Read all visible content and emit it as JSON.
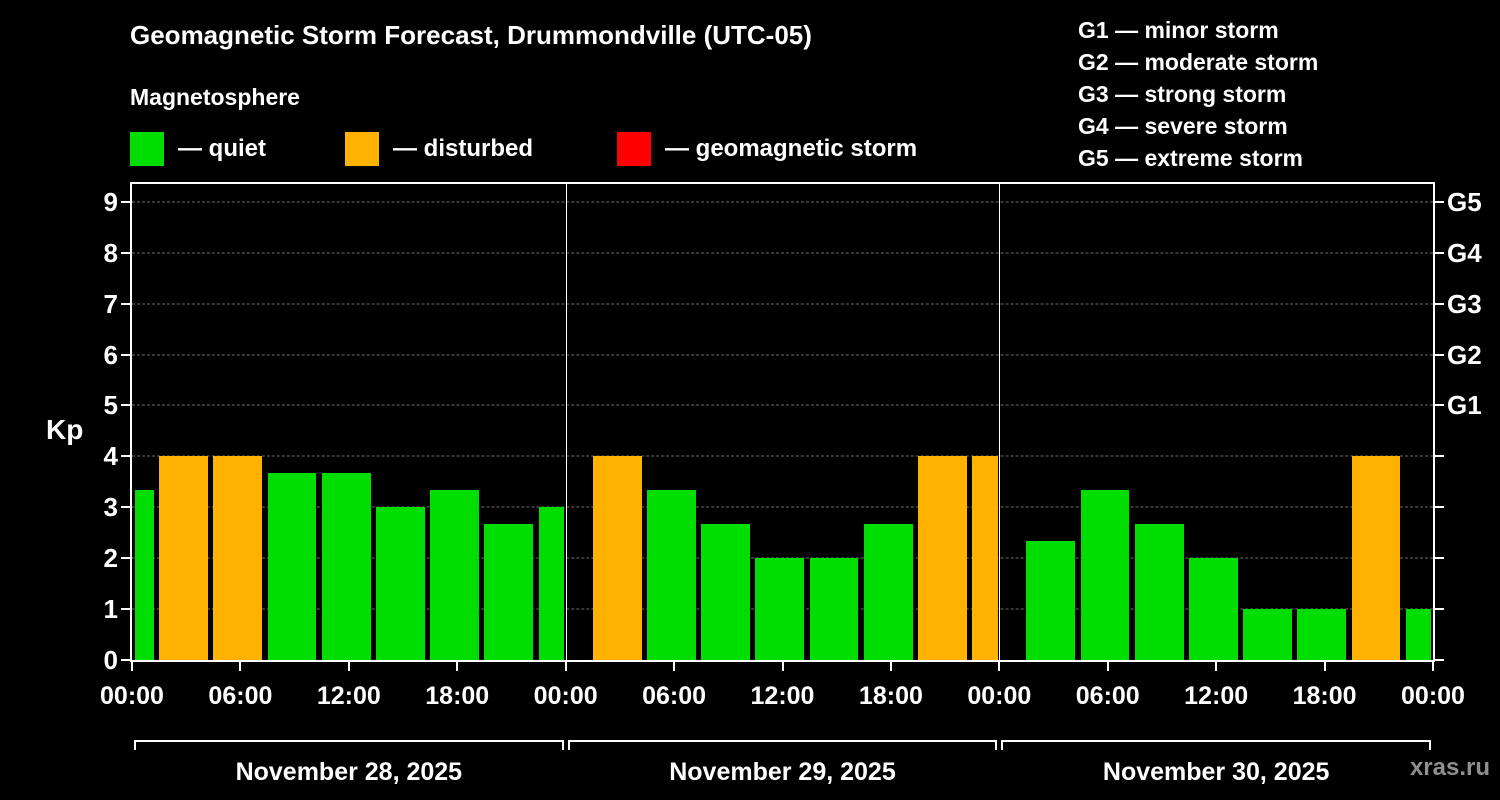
{
  "title": "Geomagnetic Storm Forecast, Drummondville (UTC-05)",
  "subtitle": "Magnetosphere",
  "watermark": "xras.ru",
  "colors": {
    "quiet": "#00dd00",
    "disturbed": "#ffb300",
    "storm": "#ff0000",
    "axis": "#ffffff",
    "grid": "#6e6e6e",
    "text": "#ffffff",
    "watermark": "#8f8f8f"
  },
  "legend": {
    "items": [
      {
        "status": "quiet",
        "label": "— quiet"
      },
      {
        "status": "disturbed",
        "label": "— disturbed"
      },
      {
        "status": "storm",
        "label": "— geomagnetic storm"
      }
    ]
  },
  "g_scale": [
    "G1 — minor storm",
    "G2 — moderate storm",
    "G3 — strong storm",
    "G4 — severe storm",
    "G5 — extreme storm"
  ],
  "chart_data": {
    "type": "bar",
    "title": "Geomagnetic Storm Forecast, Drummondville (UTC-05)",
    "ylabel": "Kp",
    "xlabel": "",
    "ylim": [
      0,
      9.35
    ],
    "yticks": [
      0,
      1,
      2,
      3,
      4,
      5,
      6,
      7,
      8,
      9
    ],
    "grid": "dashed-horizontal",
    "x_hours_range": [
      0,
      72
    ],
    "x_ticks": [
      {
        "hour": 0,
        "label": "00:00"
      },
      {
        "hour": 6,
        "label": "06:00"
      },
      {
        "hour": 12,
        "label": "12:00"
      },
      {
        "hour": 18,
        "label": "18:00"
      },
      {
        "hour": 24,
        "label": "00:00"
      },
      {
        "hour": 30,
        "label": "06:00"
      },
      {
        "hour": 36,
        "label": "12:00"
      },
      {
        "hour": 42,
        "label": "18:00"
      },
      {
        "hour": 48,
        "label": "00:00"
      },
      {
        "hour": 54,
        "label": "06:00"
      },
      {
        "hour": 60,
        "label": "12:00"
      },
      {
        "hour": 66,
        "label": "18:00"
      },
      {
        "hour": 72,
        "label": "00:00"
      }
    ],
    "day_separators_hours": [
      24,
      48
    ],
    "g_levels": [
      {
        "kp": 5,
        "label": "G1"
      },
      {
        "kp": 6,
        "label": "G2"
      },
      {
        "kp": 7,
        "label": "G3"
      },
      {
        "kp": 8,
        "label": "G4"
      },
      {
        "kp": 9,
        "label": "G5"
      }
    ],
    "days": [
      {
        "date": "November 28, 2025",
        "start_hour": 0,
        "end_hour": 24
      },
      {
        "date": "November 29, 2025",
        "start_hour": 24,
        "end_hour": 48
      },
      {
        "date": "November 30, 2025",
        "start_hour": 48,
        "end_hour": 72
      }
    ],
    "bars": [
      {
        "start": 0.15,
        "end": 1.2,
        "kp": 3.33,
        "status": "quiet"
      },
      {
        "start": 1.5,
        "end": 4.2,
        "kp": 4.0,
        "status": "disturbed"
      },
      {
        "start": 4.5,
        "end": 7.2,
        "kp": 4.0,
        "status": "disturbed"
      },
      {
        "start": 7.5,
        "end": 10.2,
        "kp": 3.67,
        "status": "quiet"
      },
      {
        "start": 10.5,
        "end": 13.2,
        "kp": 3.67,
        "status": "quiet"
      },
      {
        "start": 13.5,
        "end": 16.2,
        "kp": 3.0,
        "status": "quiet"
      },
      {
        "start": 16.5,
        "end": 19.2,
        "kp": 3.33,
        "status": "quiet"
      },
      {
        "start": 19.5,
        "end": 22.2,
        "kp": 2.67,
        "status": "quiet"
      },
      {
        "start": 22.5,
        "end": 23.9,
        "kp": 3.0,
        "status": "quiet"
      },
      {
        "start": 25.5,
        "end": 28.2,
        "kp": 4.0,
        "status": "disturbed"
      },
      {
        "start": 28.5,
        "end": 31.2,
        "kp": 3.33,
        "status": "quiet"
      },
      {
        "start": 31.5,
        "end": 34.2,
        "kp": 2.67,
        "status": "quiet"
      },
      {
        "start": 34.5,
        "end": 37.2,
        "kp": 2.0,
        "status": "quiet"
      },
      {
        "start": 37.5,
        "end": 40.2,
        "kp": 2.0,
        "status": "quiet"
      },
      {
        "start": 40.5,
        "end": 43.2,
        "kp": 2.67,
        "status": "quiet"
      },
      {
        "start": 43.5,
        "end": 46.2,
        "kp": 4.0,
        "status": "disturbed"
      },
      {
        "start": 46.5,
        "end": 47.9,
        "kp": 4.0,
        "status": "disturbed"
      },
      {
        "start": 49.5,
        "end": 52.2,
        "kp": 2.33,
        "status": "quiet"
      },
      {
        "start": 52.5,
        "end": 55.2,
        "kp": 3.33,
        "status": "quiet"
      },
      {
        "start": 55.5,
        "end": 58.2,
        "kp": 2.67,
        "status": "quiet"
      },
      {
        "start": 58.5,
        "end": 61.2,
        "kp": 2.0,
        "status": "quiet"
      },
      {
        "start": 61.5,
        "end": 64.2,
        "kp": 1.0,
        "status": "quiet"
      },
      {
        "start": 64.5,
        "end": 67.2,
        "kp": 1.0,
        "status": "quiet"
      },
      {
        "start": 67.5,
        "end": 70.2,
        "kp": 4.0,
        "status": "disturbed"
      },
      {
        "start": 70.5,
        "end": 71.9,
        "kp": 1.0,
        "status": "quiet"
      }
    ]
  }
}
